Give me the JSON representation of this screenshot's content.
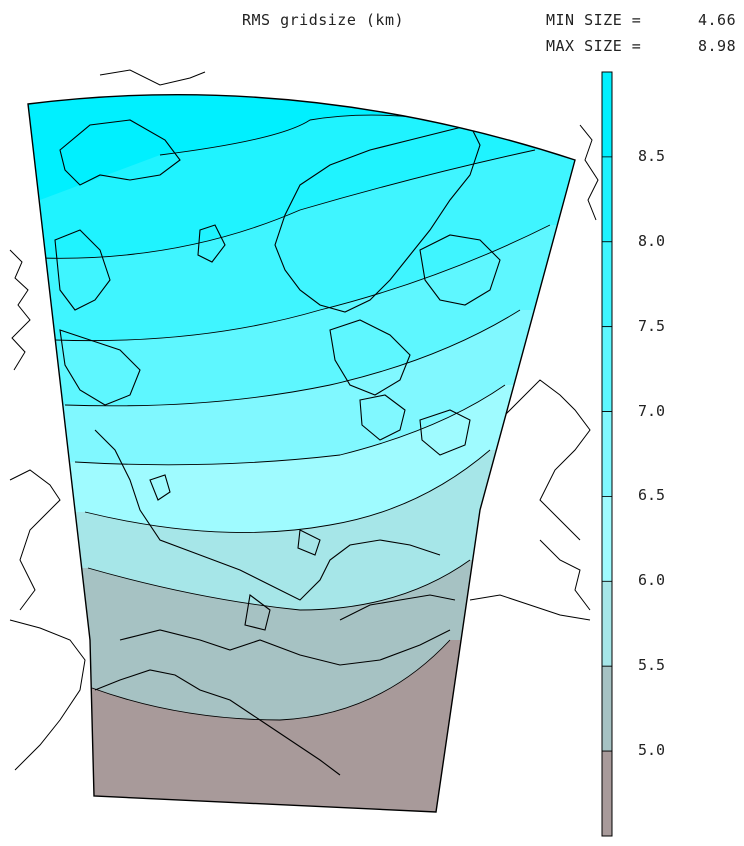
{
  "header": {
    "title": "RMS gridsize (km)",
    "min_label": "MIN SIZE =",
    "min_value": "4.66",
    "max_label": "MAX SIZE =",
    "max_value": "8.98"
  },
  "colorbar": {
    "min": 4.5,
    "max": 9.0,
    "ticks": [
      "8.5",
      "8.0",
      "7.5",
      "7.0",
      "6.5",
      "6.0",
      "5.5",
      "5.0"
    ],
    "tick_values": [
      8.5,
      8.0,
      7.5,
      7.0,
      6.5,
      6.0,
      5.5,
      5.0
    ],
    "bands": [
      {
        "from": 8.5,
        "to": 9.0,
        "color": "#00f0ff"
      },
      {
        "from": 8.0,
        "to": 8.5,
        "color": "#1ff3ff"
      },
      {
        "from": 7.5,
        "to": 8.0,
        "color": "#3ff5ff"
      },
      {
        "from": 7.0,
        "to": 7.5,
        "color": "#5ef7ff"
      },
      {
        "from": 6.5,
        "to": 7.0,
        "color": "#80f8ff"
      },
      {
        "from": 6.0,
        "to": 6.5,
        "color": "#9ffbff"
      },
      {
        "from": 5.5,
        "to": 6.0,
        "color": "#a6e6e8"
      },
      {
        "from": 5.0,
        "to": 5.5,
        "color": "#a6c2c3"
      },
      {
        "from": 4.5,
        "to": 5.0,
        "color": "#a89a9a"
      }
    ]
  },
  "map": {
    "outline_color": "#000000"
  }
}
